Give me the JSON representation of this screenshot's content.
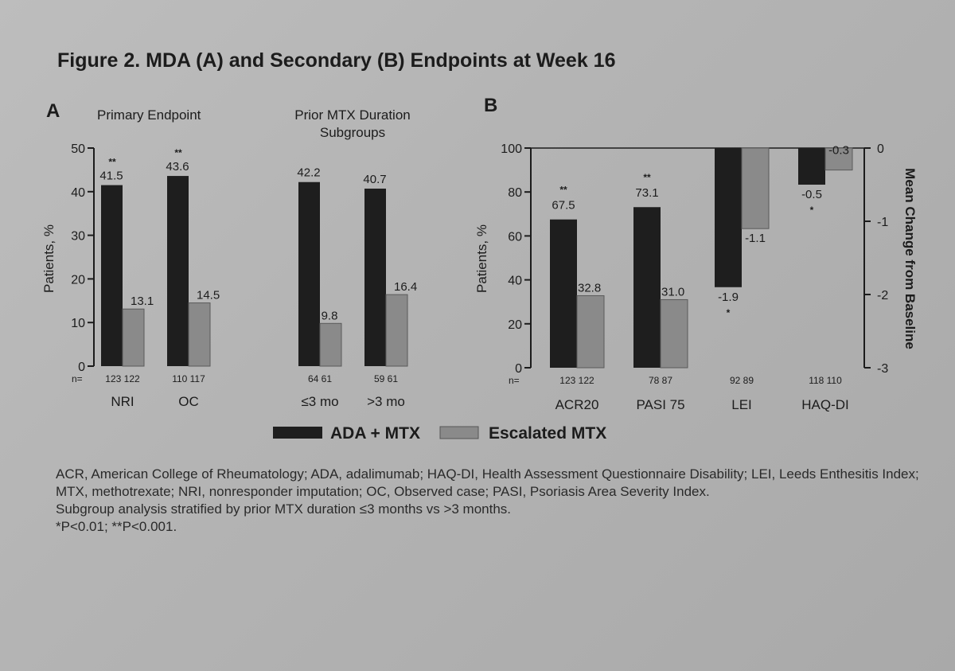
{
  "title": "Figure 2. MDA (A) and Secondary (B) Endpoints at Week 16",
  "colors": {
    "ada_mtx": "#1e1e1e",
    "escalated_mtx": "#8a8a8a",
    "axis": "#1c1c1c"
  },
  "legend": [
    {
      "label": "ADA + MTX",
      "color": "#1e1e1e"
    },
    {
      "label": "Escalated MTX",
      "color": "#8a8a8a"
    }
  ],
  "panelA": {
    "letter": "A",
    "subtitle_left": "Primary Endpoint",
    "subtitle_right_line1": "Prior MTX Duration",
    "subtitle_right_line2": "Subgroups",
    "ylabel": "Patients, %",
    "n_label": "n="
  },
  "panelB": {
    "letter": "B",
    "ylabel": "Patients, %",
    "y2label": "Mean Change from Baseline",
    "n_label": "n="
  },
  "chart_data": [
    {
      "type": "bar",
      "panel": "A",
      "ylim": [
        0,
        50
      ],
      "yticks": [
        0,
        10,
        20,
        30,
        40,
        50
      ],
      "categories": [
        "NRI",
        "OC",
        "≤3 mo",
        ">3 mo"
      ],
      "n_labels": [
        [
          "123",
          "122"
        ],
        [
          "110",
          "117"
        ],
        [
          "64",
          "61"
        ],
        [
          "59",
          "61"
        ]
      ],
      "series": [
        {
          "name": "ADA + MTX",
          "values": [
            41.5,
            43.6,
            42.2,
            40.7
          ],
          "labels": [
            "41.5",
            "43.6",
            "42.2",
            "40.7"
          ],
          "sig": [
            "**",
            "**",
            "",
            ""
          ]
        },
        {
          "name": "Escalated MTX",
          "values": [
            13.1,
            14.5,
            9.8,
            16.4
          ],
          "labels": [
            "13.1",
            "14.5",
            "9.8",
            "16.4"
          ],
          "sig": [
            "",
            "",
            "",
            ""
          ]
        }
      ]
    },
    {
      "type": "bar",
      "panel": "B",
      "ylim": [
        0,
        100
      ],
      "yticks": [
        0,
        20,
        40,
        60,
        80,
        100
      ],
      "y2lim": [
        -3,
        0
      ],
      "y2ticks": [
        "0",
        "-1",
        "-2",
        "-3"
      ],
      "categories": [
        "ACR20",
        "PASI 75",
        "LEI",
        "HAQ-DI"
      ],
      "axis": [
        "left",
        "left",
        "right",
        "right"
      ],
      "n_labels": [
        [
          "123",
          "122"
        ],
        [
          "78",
          "87"
        ],
        [
          "92",
          "89"
        ],
        [
          "118",
          "110"
        ]
      ],
      "series": [
        {
          "name": "ADA + MTX",
          "values": [
            67.5,
            73.1,
            -1.9,
            -0.5
          ],
          "labels": [
            "67.5",
            "73.1",
            "-1.9",
            "-0.5"
          ],
          "sig": [
            "**",
            "**",
            "*",
            "*"
          ]
        },
        {
          "name": "Escalated MTX",
          "values": [
            32.8,
            31.0,
            -1.1,
            -0.3
          ],
          "labels": [
            "32.8",
            "31.0",
            "-1.1",
            "-0.3"
          ],
          "sig": [
            "",
            "",
            "",
            ""
          ]
        }
      ]
    }
  ],
  "footnotes": [
    "ACR, American College of Rheumatology; ADA, adalimumab; HAQ-DI, Health Assessment Questionnaire Disability; LEI, Leeds Enthesitis Index; MTX, methotrexate; NRI, nonresponder imputation; OC, Observed case; PASI, Psoriasis Area Severity Index.",
    "Subgroup analysis stratified by prior MTX duration ≤3 months vs >3 months.",
    "*P<0.01; **P<0.001."
  ]
}
